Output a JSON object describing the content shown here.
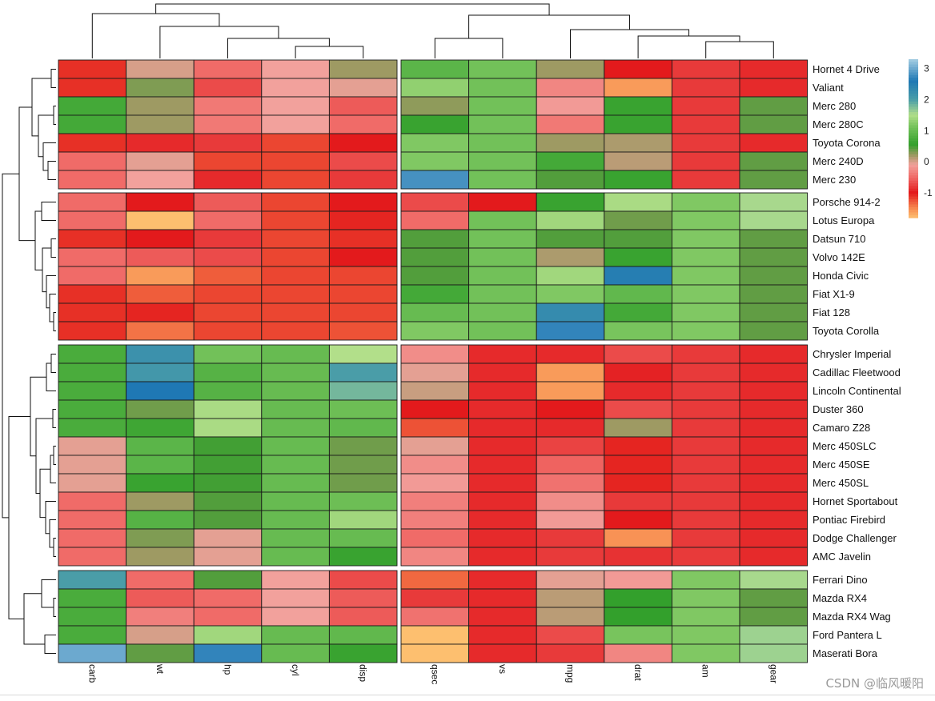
{
  "chart_data": {
    "type": "heatmap",
    "title": "",
    "xlabel": "",
    "ylabel": "",
    "columns": [
      "carb",
      "wt",
      "hp",
      "cyl",
      "disp",
      "qsec",
      "vs",
      "mpg",
      "drat",
      "am",
      "gear"
    ],
    "column_groups": [
      [
        "carb",
        "wt",
        "hp",
        "cyl",
        "disp"
      ],
      [
        "qsec",
        "vs",
        "mpg",
        "drat",
        "am",
        "gear"
      ]
    ],
    "rows": [
      "Hornet 4 Drive",
      "Valiant",
      "Merc 280",
      "Merc 280C",
      "Toyota Corona",
      "Merc 240D",
      "Merc 230",
      "Porsche 914-2",
      "Lotus Europa",
      "Datsun 710",
      "Volvo 142E",
      "Honda Civic",
      "Fiat X1-9",
      "Fiat 128",
      "Toyota Corolla",
      "Chrysler Imperial",
      "Cadillac Fleetwood",
      "Lincoln Continental",
      "Duster 360",
      "Camaro Z28",
      "Merc 450SLC",
      "Merc 450SE",
      "Merc 450SL",
      "Hornet Sportabout",
      "Pontiac Firebird",
      "Dodge Challenger",
      "AMC Javelin",
      "Ferrari Dino",
      "Mazda RX4",
      "Mazda RX4 Wag",
      "Ford Pantera L",
      "Maserati Bora"
    ],
    "row_group_sizes": [
      7,
      8,
      12,
      5
    ],
    "values": [
      [
        -1.1,
        0.0,
        -0.5,
        -0.1,
        0.2,
        0.9,
        1.1,
        0.2,
        -1.0,
        -0.8,
        -0.9
      ],
      [
        -1.1,
        0.3,
        -0.7,
        -0.1,
        -0.05,
        1.3,
        1.1,
        -0.3,
        -1.6,
        -0.8,
        -0.9
      ],
      [
        0.7,
        0.2,
        -0.4,
        -0.1,
        -0.6,
        0.25,
        1.1,
        -0.15,
        0.6,
        -0.8,
        0.4
      ],
      [
        0.7,
        0.2,
        -0.4,
        -0.1,
        -0.5,
        0.6,
        1.1,
        -0.4,
        0.6,
        -0.8,
        0.4
      ],
      [
        -1.1,
        -0.9,
        -0.8,
        -1.2,
        -1.0,
        1.2,
        1.1,
        0.2,
        0.15,
        -0.8,
        -0.9
      ],
      [
        -0.5,
        -0.05,
        -1.2,
        -1.2,
        -0.7,
        1.2,
        1.1,
        0.7,
        0.1,
        -0.8,
        0.4
      ],
      [
        -0.5,
        -0.1,
        -0.9,
        -1.2,
        -0.8,
        2.8,
        1.1,
        0.45,
        0.6,
        -0.8,
        0.4
      ],
      [
        -0.5,
        -1.0,
        -0.6,
        -1.2,
        -1.0,
        -0.7,
        -1.0,
        0.6,
        1.45,
        1.2,
        1.55
      ],
      [
        -0.5,
        -1.9,
        -0.5,
        -1.2,
        -1.05,
        -0.5,
        1.1,
        1.4,
        0.35,
        1.2,
        1.55
      ],
      [
        -1.1,
        -1.0,
        -0.8,
        -1.2,
        -1.1,
        0.45,
        1.1,
        0.45,
        0.45,
        1.2,
        0.4
      ],
      [
        -0.5,
        -0.6,
        -0.7,
        -1.2,
        -1.0,
        0.45,
        1.1,
        0.15,
        0.6,
        1.2,
        0.4
      ],
      [
        -0.5,
        -1.6,
        -1.3,
        -1.2,
        -1.2,
        0.45,
        1.1,
        1.4,
        2.5,
        1.2,
        0.4
      ],
      [
        -1.1,
        -1.3,
        -1.2,
        -1.2,
        -1.2,
        0.7,
        1.1,
        1.2,
        0.95,
        1.2,
        0.4
      ],
      [
        -1.1,
        -1.05,
        -1.2,
        -1.2,
        -1.2,
        1.0,
        1.1,
        2.3,
        0.7,
        1.2,
        0.4
      ],
      [
        -1.1,
        -1.4,
        -1.2,
        -1.2,
        -1.25,
        1.2,
        1.1,
        2.7,
        1.15,
        1.2,
        0.4
      ],
      [
        0.75,
        2.2,
        1.1,
        1.0,
        1.5,
        -0.25,
        -0.9,
        -0.9,
        -0.7,
        -0.8,
        -0.9
      ],
      [
        0.75,
        2.1,
        0.85,
        1.0,
        2.0,
        -0.05,
        -0.9,
        -1.6,
        -0.95,
        -0.8,
        -0.9
      ],
      [
        0.75,
        2.6,
        0.85,
        1.0,
        1.8,
        0.05,
        -0.9,
        -1.6,
        -0.9,
        -0.8,
        -0.9
      ],
      [
        0.75,
        0.35,
        1.45,
        1.0,
        1.05,
        -1.0,
        -0.9,
        -1.0,
        -0.7,
        -0.8,
        -0.9
      ],
      [
        0.75,
        0.65,
        1.45,
        1.0,
        0.95,
        -1.25,
        -0.9,
        -0.9,
        0.2,
        -0.8,
        -0.9
      ],
      [
        -0.05,
        0.9,
        0.5,
        1.0,
        0.35,
        -0.05,
        -0.9,
        -0.75,
        -1.05,
        -0.8,
        -0.9
      ],
      [
        -0.05,
        0.9,
        0.5,
        1.0,
        0.35,
        -0.25,
        -0.9,
        -0.55,
        -1.05,
        -0.8,
        -0.9
      ],
      [
        -0.05,
        0.6,
        0.5,
        1.0,
        0.35,
        -0.15,
        -0.9,
        -0.45,
        -1.05,
        -0.8,
        -0.9
      ],
      [
        -0.5,
        0.2,
        0.45,
        1.0,
        1.05,
        -0.35,
        -0.9,
        -0.25,
        -0.8,
        -0.8,
        -0.9
      ],
      [
        -0.5,
        0.85,
        0.45,
        1.0,
        1.4,
        -0.35,
        -0.9,
        -0.15,
        -1.0,
        -0.8,
        -0.9
      ],
      [
        -0.5,
        0.3,
        -0.05,
        1.0,
        1.0,
        -0.5,
        -0.9,
        -0.8,
        -1.55,
        -0.8,
        -0.9
      ],
      [
        -0.5,
        0.2,
        -0.05,
        1.0,
        0.6,
        -0.3,
        -0.9,
        -0.8,
        -0.85,
        -0.8,
        -0.9
      ],
      [
        2.0,
        -0.5,
        0.45,
        -0.1,
        -0.7,
        -1.35,
        -0.9,
        -0.05,
        -0.15,
        1.2,
        1.55
      ],
      [
        0.75,
        -0.6,
        -0.5,
        -0.1,
        -0.6,
        -0.8,
        -0.9,
        0.1,
        0.55,
        1.2,
        0.4
      ],
      [
        0.75,
        -0.35,
        -0.5,
        -0.1,
        -0.6,
        -0.45,
        -0.9,
        0.1,
        0.55,
        1.2,
        0.4
      ],
      [
        0.75,
        0.0,
        1.4,
        1.0,
        0.95,
        -1.8,
        -0.9,
        -0.7,
        1.15,
        1.2,
        1.6
      ],
      [
        3.0,
        0.4,
        2.7,
        1.0,
        0.6,
        -1.8,
        -0.9,
        -0.8,
        -0.3,
        1.2,
        1.6
      ]
    ],
    "color_scale": {
      "min": -1.8,
      "max": 3.3,
      "stops": [
        {
          "value": -1.8,
          "color": "#fdbf6f"
        },
        {
          "value": -1.5,
          "color": "#f78950"
        },
        {
          "value": -1.0,
          "color": "#e31a1c"
        },
        {
          "value": -0.5,
          "color": "#f06b68"
        },
        {
          "value": -0.1,
          "color": "#f2a19c"
        },
        {
          "value": 0.2,
          "color": "#9e9a63"
        },
        {
          "value": 0.55,
          "color": "#33a02c"
        },
        {
          "value": 1.15,
          "color": "#78c45d"
        },
        {
          "value": 1.5,
          "color": "#b2df8a"
        },
        {
          "value": 2.0,
          "color": "#4a9da8"
        },
        {
          "value": 2.6,
          "color": "#1f78b4"
        },
        {
          "value": 3.3,
          "color": "#a6cee3"
        }
      ],
      "legend_ticks": [
        3,
        2,
        1,
        0,
        -1
      ]
    }
  },
  "watermark": "CSDN @临风暖阳"
}
